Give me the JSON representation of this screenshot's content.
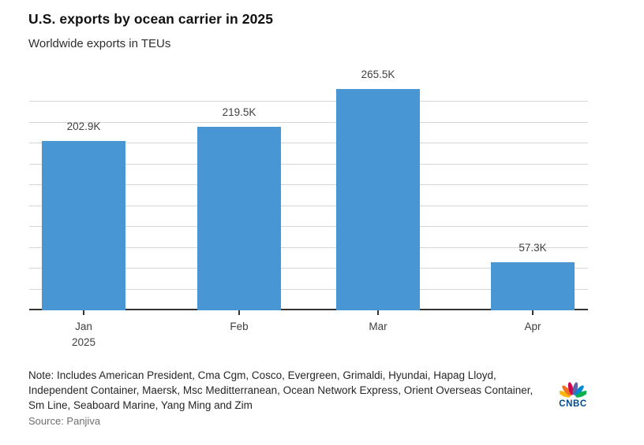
{
  "chart_data": {
    "type": "bar",
    "title": "U.S. exports by ocean carrier in 2025",
    "subtitle": "Worldwide exports in TEUs",
    "categories": [
      "Jan",
      "Feb",
      "Mar",
      "Apr"
    ],
    "x_secondary_label": {
      "under_category": "Jan",
      "text": "2025"
    },
    "values": [
      202.9,
      219.5,
      265.5,
      57.3
    ],
    "value_labels": [
      "202.9K",
      "219.5K",
      "265.5K",
      "57.3K"
    ],
    "unit": "thousand TEUs",
    "ylim": [
      0,
      277.5
    ],
    "gridline_step": 25,
    "gridline_count": 10,
    "grid": "on",
    "legend": "none",
    "y_axis_tick_labels": "none",
    "bar_color": "#4896d3",
    "axis_color": "#333333",
    "gridline_color": "#d6d6d6"
  },
  "footer": {
    "note": "Note: Includes American President, Cma Cgm, Cosco, Evergreen, Grimaldi, Hyundai, Hapag Lloyd, Independent Container, Maersk, Msc Meditterranean, Ocean Network Express, Orient Overseas Container, Sm Line, Seaboard Marine, Yang Ming and Zim",
    "source": "Source: Panjiva"
  },
  "logo": {
    "brand": "CNBC",
    "wordmark_color": "#00498e",
    "peacock_colors": [
      "#FCB711",
      "#F37021",
      "#CC004C",
      "#6460AA",
      "#0089D0",
      "#0DB14B"
    ]
  }
}
